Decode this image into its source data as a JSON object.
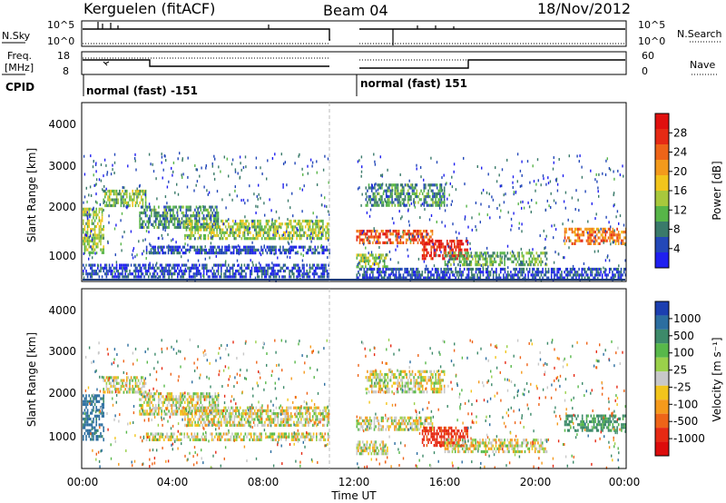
{
  "header": {
    "station": "Kerguelen (fitACF)",
    "beam": "Beam 04",
    "date": "18/Nov/2012"
  },
  "params_panel": {
    "nsky_label": "N.Sky",
    "nsky_ticks": [
      "10^5",
      "10^0"
    ],
    "nsearch_label": "N.Search",
    "nsearch_ticks": [
      "10^5",
      "10^0"
    ],
    "freq_label_1": "Freq.",
    "freq_label_2": "[MHz]",
    "freq_ticks": [
      "18",
      "8"
    ],
    "nave_label": "Nave",
    "nave_ticks": [
      "60",
      "0"
    ],
    "cpid_label": "CPID",
    "modes": [
      {
        "label": "normal (fast) -151",
        "start_hour": 0,
        "end_hour": 10.9
      },
      {
        "label": "normal (fast) 151",
        "start_hour": 12.1,
        "end_hour": 24
      }
    ]
  },
  "axes": {
    "xlabel": "Time UT",
    "x_ticks": [
      "00:00",
      "04:00",
      "08:00",
      "12:00",
      "16:00",
      "20:00",
      "00:00"
    ],
    "ylabel": "Slant Range [km]",
    "y_ticks": [
      "1000",
      "2000",
      "3000",
      "4000"
    ]
  },
  "power_colorbar": {
    "label": "Power [dB]",
    "ticks": [
      "4",
      "8",
      "12",
      "16",
      "20",
      "24",
      "28"
    ],
    "colors": [
      "#1f1ff0",
      "#2348b8",
      "#3a7a6a",
      "#57b548",
      "#a8c83c",
      "#f2c51c",
      "#f39a1c",
      "#ee6418",
      "#e62a14",
      "#e0100e"
    ]
  },
  "velocity_colorbar": {
    "label": "Velocity [m s⁻¹]",
    "ticks": [
      "1000",
      "500",
      "100",
      "25",
      "-25",
      "-100",
      "-500",
      "-1000"
    ],
    "colors": [
      "#1c3fb0",
      "#2c6ea0",
      "#3d8a6a",
      "#58b84a",
      "#9ad04a",
      "#c8c8c8",
      "#f2c51c",
      "#f59a1c",
      "#ee6418",
      "#e62a14",
      "#dc0c0c"
    ]
  },
  "chart_data": [
    {
      "type": "heatmap",
      "name": "power",
      "title": "",
      "xlabel": "Time UT",
      "ylabel": "Slant Range [km]",
      "xlim": [
        0,
        24
      ],
      "ylim": [
        180,
        4600
      ],
      "x_ticks": [
        0,
        4,
        8,
        12,
        16,
        20,
        24
      ],
      "y_ticks": [
        1000,
        2000,
        3000,
        4000
      ],
      "data_gap_hours": [
        10.9,
        12.1
      ],
      "colorbar": {
        "label": "Power [dB]",
        "ticks": [
          4,
          8,
          12,
          16,
          20,
          24,
          28
        ]
      },
      "echo_bands": [
        {
          "t0": 0.0,
          "t1": 0.9,
          "r0": 900,
          "r1": 2000,
          "value": 14
        },
        {
          "t0": 0.9,
          "t1": 2.8,
          "r0": 2050,
          "r1": 2450,
          "value": 13
        },
        {
          "t0": 2.5,
          "t1": 6.0,
          "r0": 1500,
          "r1": 2050,
          "value": 10
        },
        {
          "t0": 4.5,
          "t1": 10.9,
          "r0": 1200,
          "r1": 1700,
          "value": 14
        },
        {
          "t0": 2.8,
          "t1": 10.9,
          "r0": 850,
          "r1": 1050,
          "value": 6
        },
        {
          "t0": 0.0,
          "t1": 10.9,
          "r0": 250,
          "r1": 600,
          "value": 6
        },
        {
          "t0": 12.1,
          "t1": 15.5,
          "r0": 1150,
          "r1": 1450,
          "value": 24
        },
        {
          "t0": 15.0,
          "t1": 17.0,
          "r0": 750,
          "r1": 1200,
          "value": 27
        },
        {
          "t0": 12.1,
          "t1": 13.5,
          "r0": 500,
          "r1": 850,
          "value": 14
        },
        {
          "t0": 12.5,
          "t1": 16.0,
          "r0": 2050,
          "r1": 2600,
          "value": 10
        },
        {
          "t0": 16.0,
          "t1": 20.5,
          "r0": 550,
          "r1": 900,
          "value": 12
        },
        {
          "t0": 21.3,
          "t1": 24.0,
          "r0": 1100,
          "r1": 1500,
          "value": 22
        },
        {
          "t0": 12.1,
          "t1": 24.0,
          "r0": 250,
          "r1": 500,
          "value": 6
        }
      ]
    },
    {
      "type": "heatmap",
      "name": "velocity",
      "title": "",
      "xlabel": "Time UT",
      "ylabel": "Slant Range [km]",
      "xlim": [
        0,
        24
      ],
      "ylim": [
        180,
        4600
      ],
      "x_ticks": [
        0,
        4,
        8,
        12,
        16,
        20,
        24
      ],
      "y_ticks": [
        1000,
        2000,
        3000,
        4000
      ],
      "data_gap_hours": [
        10.9,
        12.1
      ],
      "colorbar": {
        "label": "Velocity [m s⁻¹]",
        "ticks": [
          1000,
          500,
          100,
          25,
          -25,
          -100,
          -500,
          -1000
        ]
      },
      "echo_bands": [
        {
          "t0": 0.0,
          "t1": 0.9,
          "r0": 900,
          "r1": 2000,
          "value": 300
        },
        {
          "t0": 0.9,
          "t1": 2.8,
          "r0": 2050,
          "r1": 2450,
          "value": 0
        },
        {
          "t0": 2.5,
          "t1": 6.0,
          "r0": 1500,
          "r1": 2050,
          "value": 0
        },
        {
          "t0": 4.5,
          "t1": 10.9,
          "r0": 1200,
          "r1": 1700,
          "value": 0
        },
        {
          "t0": 2.8,
          "t1": 10.9,
          "r0": 850,
          "r1": 1050,
          "value": 0
        },
        {
          "t0": 12.1,
          "t1": 15.5,
          "r0": 1150,
          "r1": 1450,
          "value": 0
        },
        {
          "t0": 15.0,
          "t1": 17.0,
          "r0": 750,
          "r1": 1200,
          "value": -300
        },
        {
          "t0": 12.1,
          "t1": 13.5,
          "r0": 500,
          "r1": 850,
          "value": 0
        },
        {
          "t0": 12.5,
          "t1": 16.0,
          "r0": 2050,
          "r1": 2600,
          "value": 0
        },
        {
          "t0": 16.0,
          "t1": 20.5,
          "r0": 550,
          "r1": 900,
          "value": 0
        },
        {
          "t0": 21.3,
          "t1": 24.0,
          "r0": 1100,
          "r1": 1500,
          "value": 150
        }
      ]
    }
  ]
}
